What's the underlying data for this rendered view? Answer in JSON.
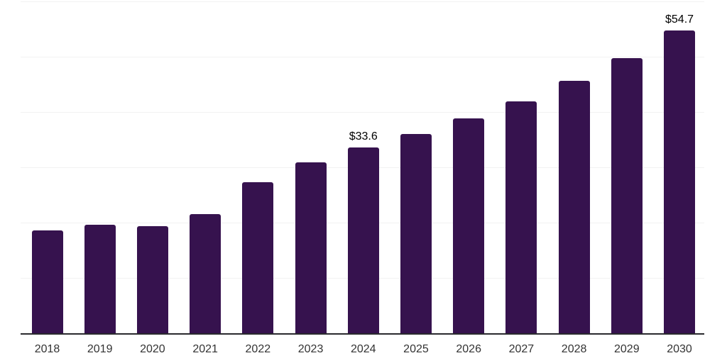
{
  "chart_data": {
    "type": "bar",
    "title": "",
    "xlabel": "",
    "ylabel": "",
    "categories": [
      "2018",
      "2019",
      "2020",
      "2021",
      "2022",
      "2023",
      "2024",
      "2025",
      "2026",
      "2027",
      "2028",
      "2029",
      "2030"
    ],
    "values": [
      18.6,
      19.6,
      19.4,
      21.5,
      27.3,
      30.9,
      33.6,
      36.0,
      38.9,
      41.9,
      45.6,
      49.7,
      54.7
    ],
    "data_labels": [
      {
        "category": "2024",
        "text": "$33.6"
      },
      {
        "category": "2030",
        "text": "$54.7"
      }
    ],
    "ylim": [
      0,
      60
    ],
    "grid": {
      "visible": true,
      "step": 10,
      "y_tick_labels_shown": false
    },
    "legend": "none",
    "colors": {
      "bar": "#36124E",
      "gridline": "#f2f2f2",
      "axis_line": "#2a2a2e",
      "tick_label": "#333333",
      "data_label": "#000000",
      "background": "#ffffff"
    }
  }
}
